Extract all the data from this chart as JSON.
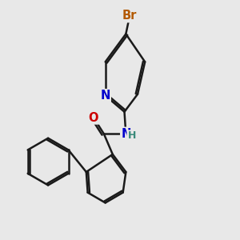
{
  "bg_color": "#e8e8e8",
  "bond_color": "#1a1a1a",
  "bond_width": 1.8,
  "atom_colors": {
    "Br": "#b35900",
    "N": "#0000cc",
    "O": "#cc0000",
    "H": "#3a8a7a",
    "C": "#1a1a1a"
  },
  "font_size": 10.5
}
